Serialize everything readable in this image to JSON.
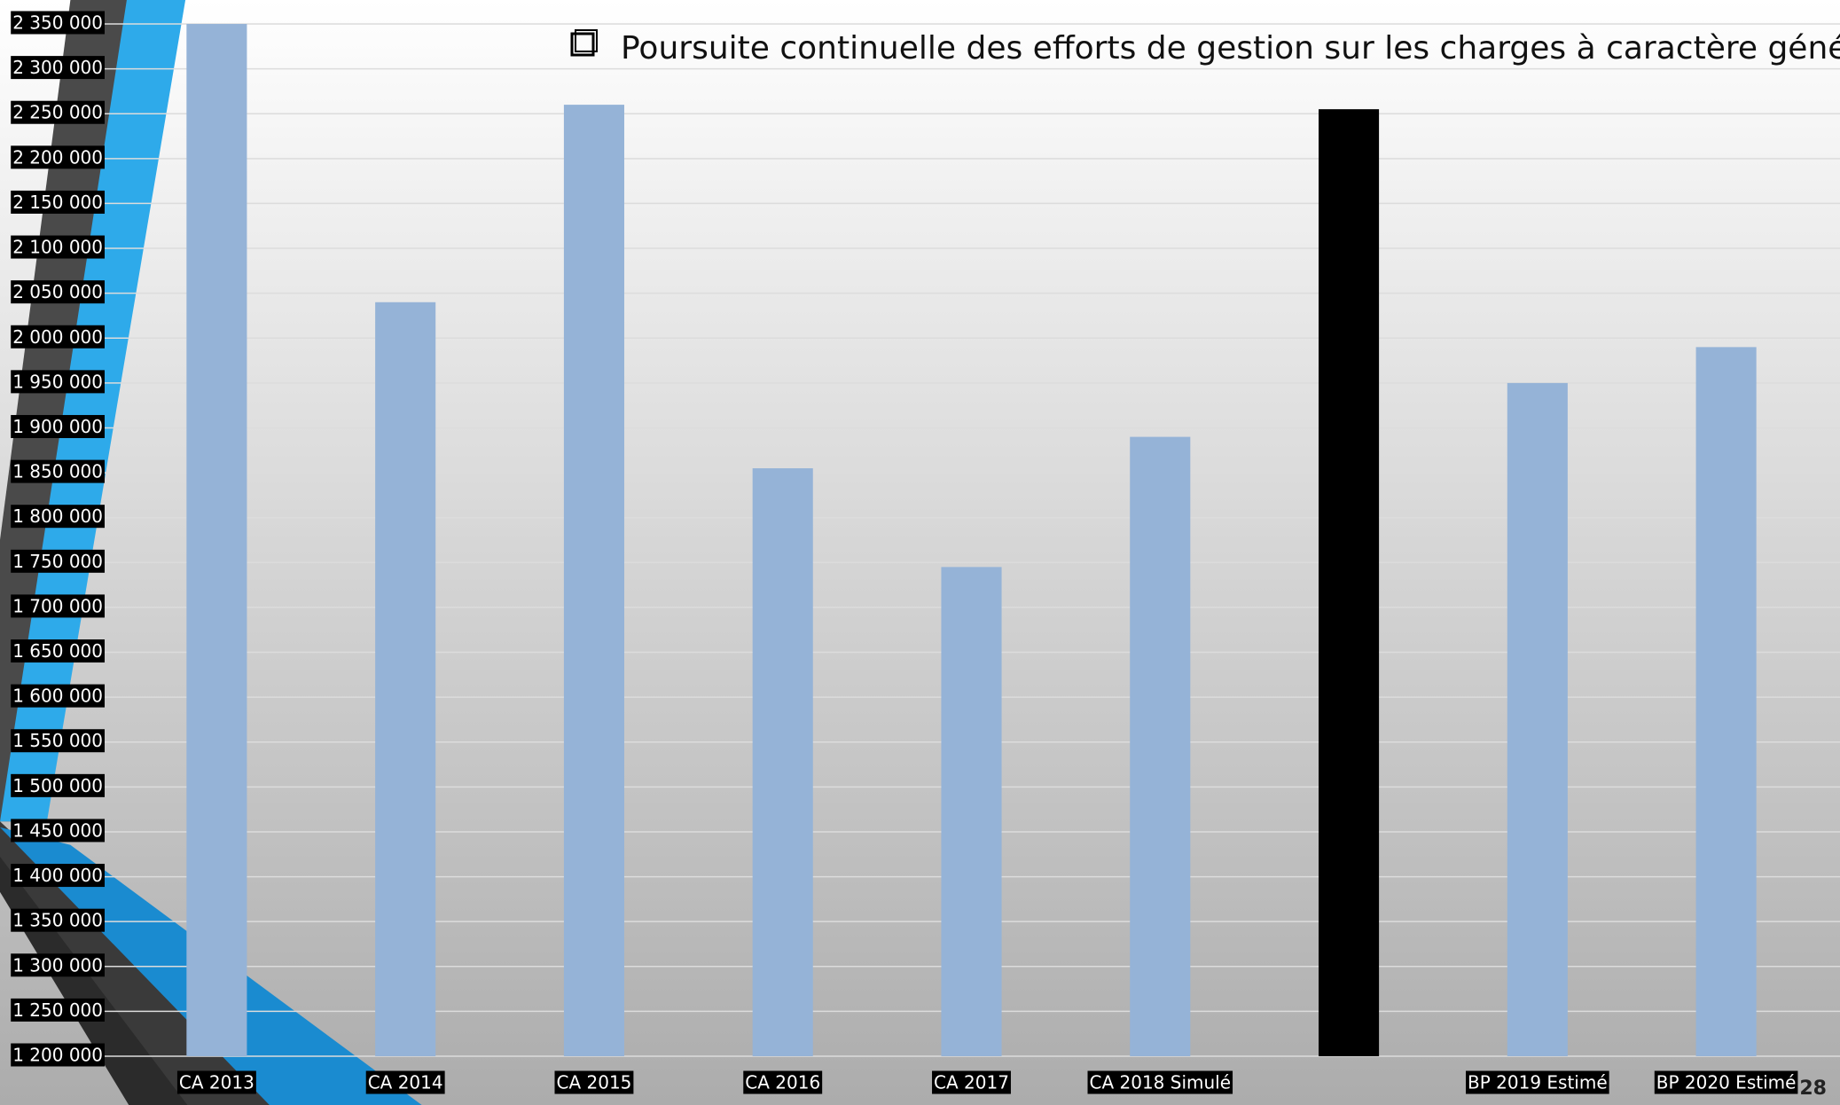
{
  "chart_data": {
    "type": "bar",
    "title": "Poursuite continuelle des efforts de gestion sur les charges à caractère général.",
    "page_number": "28",
    "categories": [
      "CA 2013",
      "CA 2014",
      "CA 2015",
      "CA 2016",
      "CA 2017",
      "CA 2018 Simulé",
      null,
      "BP 2019 Estimé",
      "BP 2020 Estimé"
    ],
    "values": [
      2350000,
      2040000,
      2260000,
      1855000,
      1745000,
      1890000,
      2255000,
      1950000,
      1990000
    ],
    "colors": [
      "#95b3d7",
      "#95b3d7",
      "#95b3d7",
      "#95b3d7",
      "#95b3d7",
      "#95b3d7",
      "#000000",
      "#95b3d7",
      "#95b3d7"
    ],
    "ylim": [
      1200000,
      2350000
    ],
    "yticks": [
      {
        "value": 1200000,
        "label": "1 200 000"
      },
      {
        "value": 1250000,
        "label": "1 250 000"
      },
      {
        "value": 1300000,
        "label": "1 300 000"
      },
      {
        "value": 1350000,
        "label": "1 350 000"
      },
      {
        "value": 1400000,
        "label": "1 400 000"
      },
      {
        "value": 1450000,
        "label": "1 450 000"
      },
      {
        "value": 1500000,
        "label": "1 500 000"
      },
      {
        "value": 1550000,
        "label": "1 550 000"
      },
      {
        "value": 1600000,
        "label": "1 600 000"
      },
      {
        "value": 1650000,
        "label": "1 650 000"
      },
      {
        "value": 1700000,
        "label": "1 700 000"
      },
      {
        "value": 1750000,
        "label": "1 750 000"
      },
      {
        "value": 1800000,
        "label": "1 800 000"
      },
      {
        "value": 1850000,
        "label": "1 850 000"
      },
      {
        "value": 1900000,
        "label": "1 900 000"
      },
      {
        "value": 1950000,
        "label": "1 950 000"
      },
      {
        "value": 2000000,
        "label": "2 000 000"
      },
      {
        "value": 2050000,
        "label": "2 050 000"
      },
      {
        "value": 2100000,
        "label": "2 100 000"
      },
      {
        "value": 2150000,
        "label": "2 150 000"
      },
      {
        "value": 2200000,
        "label": "2 200 000"
      },
      {
        "value": 2250000,
        "label": "2 250 000"
      },
      {
        "value": 2300000,
        "label": "2 300 000"
      },
      {
        "value": 2350000,
        "label": "2 350 000"
      }
    ],
    "grid": true
  }
}
